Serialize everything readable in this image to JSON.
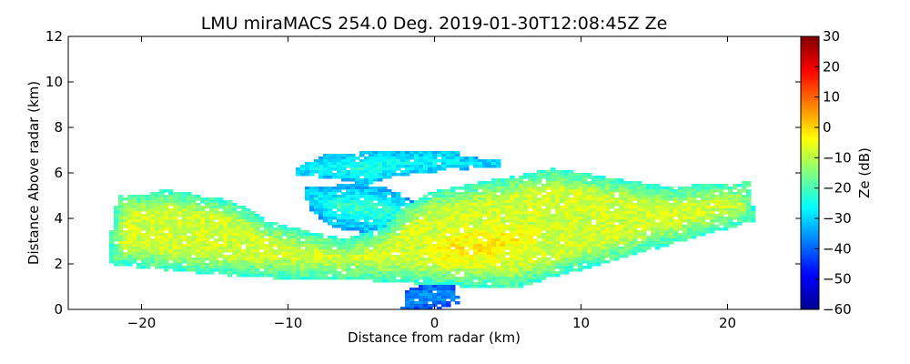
{
  "chart_data": {
    "type": "heatmap",
    "title": "LMU miraMACS 254.0 Deg. 2019-01-30T12:08:45Z  Ze",
    "xlabel": "Distance from radar (km)",
    "ylabel": "Distance Above radar  (km)",
    "xlim": [
      -25,
      25
    ],
    "ylim": [
      0,
      12
    ],
    "xticks": [
      -20,
      -10,
      0,
      10,
      20
    ],
    "xtick_labels": [
      "−20",
      "−10",
      "0",
      "10",
      "20"
    ],
    "yticks": [
      0,
      2,
      4,
      6,
      8,
      10,
      12
    ],
    "ytick_labels": [
      "0",
      "2",
      "4",
      "6",
      "8",
      "10",
      "12"
    ],
    "grid": false,
    "colorbar": {
      "label": "Ze (dB)",
      "colormap": "jet",
      "range": [
        -60,
        30
      ],
      "ticks": [
        -60,
        -50,
        -40,
        -30,
        -20,
        -10,
        0,
        10,
        20,
        30
      ],
      "tick_labels": [
        "−60",
        "−50",
        "−40",
        "−30",
        "−20",
        "−10",
        "0",
        "10",
        "20",
        "30"
      ]
    },
    "regions": [
      {
        "name": "main-layer",
        "polygon": [
          [
            -22.2,
            2.3
          ],
          [
            -22.0,
            3.9
          ],
          [
            -21.5,
            5.1
          ],
          [
            -19.5,
            5.1
          ],
          [
            -18.5,
            5.3
          ],
          [
            -14.0,
            4.8
          ],
          [
            -13.0,
            4.5
          ],
          [
            -11.5,
            3.9
          ],
          [
            -9.0,
            3.5
          ],
          [
            -6.0,
            3.1
          ],
          [
            -3.5,
            3.6
          ],
          [
            -2.0,
            4.6
          ],
          [
            0.0,
            5.2
          ],
          [
            4.0,
            5.7
          ],
          [
            8.0,
            6.2
          ],
          [
            12.0,
            5.8
          ],
          [
            16.0,
            5.4
          ],
          [
            21.5,
            5.6
          ],
          [
            21.9,
            3.9
          ],
          [
            5.3,
            0.9
          ],
          [
            -0.5,
            1.1
          ],
          [
            -5.0,
            1.3
          ],
          [
            -9.0,
            1.3
          ],
          [
            -14.0,
            1.5
          ],
          [
            -18.0,
            1.7
          ],
          [
            -22.2,
            2.0
          ]
        ],
        "ze_core": -8,
        "ze_edge": -22
      },
      {
        "name": "upper-cloud-band",
        "polygon": [
          [
            -9.5,
            6.2
          ],
          [
            -7.5,
            6.8
          ],
          [
            -4.0,
            6.95
          ],
          [
            1.5,
            6.95
          ],
          [
            2.0,
            6.7
          ],
          [
            4.5,
            6.6
          ],
          [
            4.5,
            6.3
          ],
          [
            1.0,
            6.1
          ],
          [
            -2.5,
            5.9
          ],
          [
            -4.5,
            5.5
          ],
          [
            -7.5,
            5.8
          ],
          [
            -9.5,
            5.9
          ]
        ],
        "ze_core": -20,
        "ze_edge": -32
      },
      {
        "name": "fall-streaks",
        "polygon": [
          [
            -9.0,
            5.4
          ],
          [
            -5.0,
            5.5
          ],
          [
            -3.0,
            5.3
          ],
          [
            -1.0,
            4.6
          ],
          [
            -1.5,
            3.6
          ],
          [
            -4.0,
            3.3
          ],
          [
            -7.0,
            3.6
          ],
          [
            -8.5,
            4.4
          ]
        ],
        "ze_core": -22,
        "ze_edge": -34
      },
      {
        "name": "near-ground-echo",
        "polygon": [
          [
            -2.2,
            0.0
          ],
          [
            -2.0,
            0.8
          ],
          [
            -0.5,
            1.2
          ],
          [
            1.5,
            1.0
          ],
          [
            1.6,
            0.3
          ],
          [
            0.2,
            0.0
          ]
        ],
        "ze_core": -30,
        "ze_edge": -42
      },
      {
        "name": "core-maximum",
        "polygon": [
          [
            -1.0,
            2.6
          ],
          [
            1.0,
            3.6
          ],
          [
            5.0,
            3.9
          ],
          [
            8.0,
            3.5
          ],
          [
            6.0,
            2.4
          ],
          [
            3.5,
            1.8
          ],
          [
            0.5,
            1.8
          ]
        ],
        "ze_core": -2,
        "ze_edge": -8
      }
    ]
  }
}
